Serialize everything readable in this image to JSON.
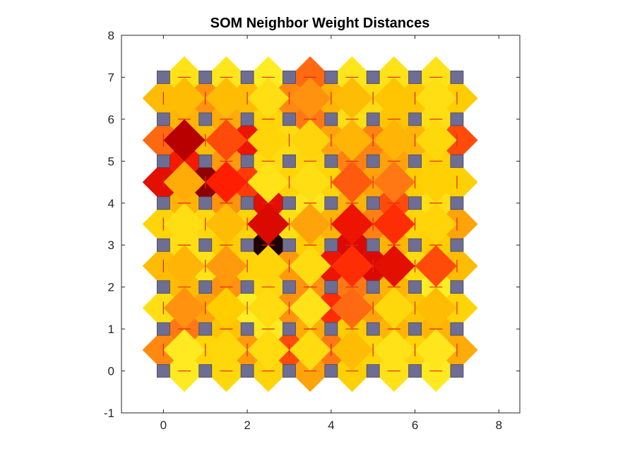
{
  "chart_data": {
    "type": "heatmap",
    "title": "SOM Neighbor Weight Distances",
    "xlabel": "",
    "ylabel": "",
    "xlim": [
      -1,
      8.5
    ],
    "ylim": [
      -1,
      8
    ],
    "xticks": [
      0,
      2,
      4,
      6,
      8
    ],
    "yticks": [
      -1,
      0,
      1,
      2,
      3,
      4,
      5,
      6,
      7,
      8
    ],
    "grid": false,
    "colormap": "hot (reversed)",
    "colors": {
      "neuron": "#6e6e94",
      "neuron_edge": "#46465c",
      "link": "#e6241e",
      "axis": "#262626"
    },
    "neurons": {
      "cols": 8,
      "rows": 8,
      "x_start": 0,
      "x_step": 1,
      "y_start": 0,
      "y_step": 1
    },
    "edge_value_scale": "0 = pale yellow (near), 1 = black (far)",
    "horizontal_edge_values": [
      [
        0.14,
        0.24,
        0.26,
        0.4,
        0.28,
        0.18,
        0.14
      ],
      [
        0.5,
        0.32,
        0.14,
        0.38,
        0.3,
        0.36,
        0.36
      ],
      [
        0.34,
        0.44,
        0.24,
        0.44,
        0.5,
        0.36,
        0.12
      ],
      [
        0.2,
        0.3,
        0.96,
        0.3,
        0.7,
        0.36,
        0.3
      ],
      [
        0.36,
        0.44,
        0.68,
        0.16,
        0.36,
        0.56,
        0.2
      ],
      [
        0.64,
        0.42,
        0.22,
        0.24,
        0.48,
        0.4,
        0.28
      ],
      [
        0.36,
        0.38,
        0.26,
        0.5,
        0.2,
        0.32,
        0.2
      ],
      [
        0.18,
        0.16,
        0.12,
        0.52,
        0.16,
        0.18,
        0.18
      ]
    ],
    "vertical_edge_values": [
      [
        0.46,
        0.26,
        0.42,
        0.56,
        0.5,
        0.26,
        0.26,
        0.38
      ],
      [
        0.2,
        0.4,
        0.12,
        0.44,
        0.6,
        0.4,
        0.32,
        0.26
      ],
      [
        0.34,
        0.18,
        0.26,
        0.42,
        0.66,
        0.7,
        0.22,
        0.34
      ],
      [
        0.26,
        0.24,
        0.26,
        0.2,
        0.36,
        0.48,
        0.26,
        0.4
      ],
      [
        0.68,
        0.82,
        0.58,
        0.26,
        0.26,
        0.4,
        0.3,
        0.28
      ],
      [
        0.52,
        0.34,
        0.66,
        0.22,
        0.4,
        0.48,
        0.36,
        0.56
      ],
      [
        0.34,
        0.44,
        0.34,
        0.46,
        0.36,
        0.22,
        0.32,
        0.3
      ]
    ],
    "diagonal_edge_values": [
      [
        0.14,
        0.24,
        0.22,
        0.22,
        0.34,
        0.18,
        0.16
      ],
      [
        0.44,
        0.3,
        0.22,
        0.18,
        0.52,
        0.24,
        0.34
      ],
      [
        0.36,
        0.42,
        0.26,
        0.22,
        0.6,
        0.68,
        0.56
      ],
      [
        0.2,
        0.34,
        0.7,
        0.4,
        0.66,
        0.6,
        0.26
      ],
      [
        0.38,
        0.62,
        0.18,
        0.2,
        0.54,
        0.5,
        0.28
      ],
      [
        0.76,
        0.56,
        0.26,
        0.26,
        0.36,
        0.36,
        0.24
      ],
      [
        0.34,
        0.34,
        0.2,
        0.44,
        0.34,
        0.32,
        0.2
      ]
    ]
  }
}
